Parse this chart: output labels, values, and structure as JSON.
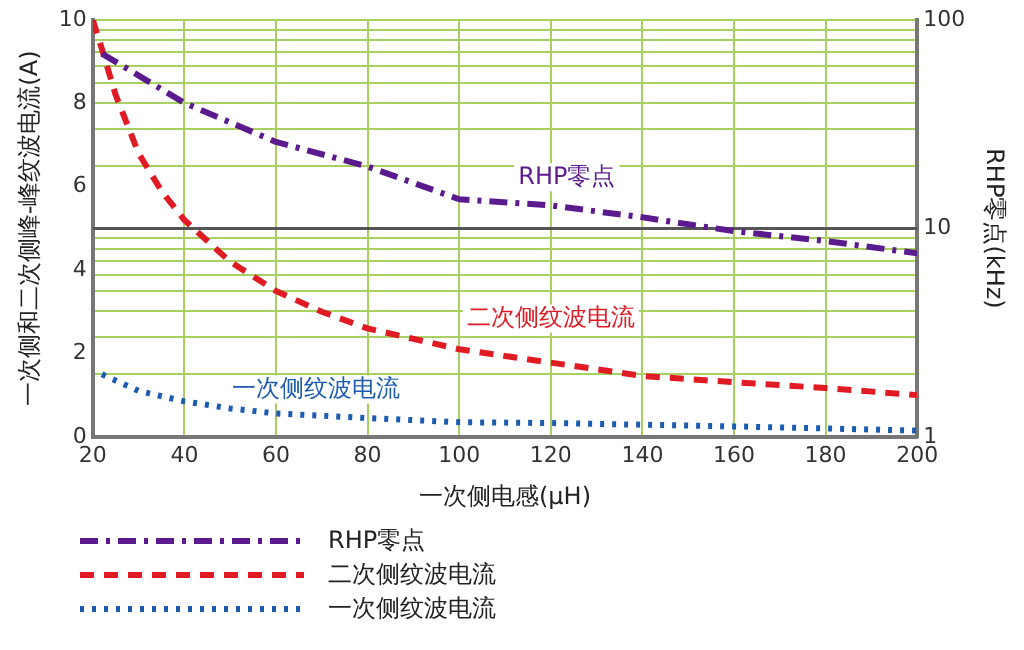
{
  "chart_data": {
    "type": "line",
    "xlabel": "一次侧电感(μH)",
    "ylabel": "一次侧和二次侧峰-峰纹波电流(A)",
    "y2label": "RHP零点(kHz)",
    "xlim": [
      20,
      200
    ],
    "xticks": [
      20,
      40,
      60,
      80,
      100,
      120,
      140,
      160,
      180,
      200
    ],
    "ylim": [
      0,
      10
    ],
    "yticks": [
      0,
      2,
      4,
      6,
      8,
      10
    ],
    "y2lim": [
      1,
      100
    ],
    "y2ticks": [
      1,
      {
        "value": 2,
        "label": null
      },
      {
        "value": 3,
        "label": null
      },
      {
        "value": 4,
        "label": null
      },
      {
        "value": 5,
        "label": null
      },
      {
        "value": 6,
        "label": null
      },
      {
        "value": 7,
        "label": null
      },
      {
        "value": 8,
        "label": null
      },
      {
        "value": 9,
        "label": null
      },
      10,
      {
        "value": 20,
        "label": null
      },
      {
        "value": 30,
        "label": null
      },
      {
        "value": 40,
        "label": null
      },
      {
        "value": 50,
        "label": null
      },
      {
        "value": 60,
        "label": null
      },
      {
        "value": 70,
        "label": null
      },
      {
        "value": 80,
        "label": null
      },
      {
        "value": 90,
        "label": null
      },
      100
    ],
    "log": "y2",
    "grid": true,
    "legend": "bottom left",
    "marker": "none",
    "ref_lines": [
      {
        "axis": "y2",
        "value": 10,
        "color": "#555555"
      }
    ],
    "series": [
      {
        "name": "RHP零点",
        "color": "#5b1a8e",
        "axis": "y2",
        "line_style": "dashdot",
        "x": [
          22,
          40,
          60,
          80,
          100,
          120,
          140,
          160,
          180,
          200
        ],
        "values": [
          69,
          40,
          26,
          19.8,
          13.8,
          12.9,
          11.3,
          9.7,
          8.7,
          7.6
        ]
      },
      {
        "name": "二次侧纹波电流",
        "color": "#e01b24",
        "line_style": "dashed",
        "x": [
          20,
          22,
          25,
          30,
          35,
          40,
          50,
          60,
          70,
          80,
          100,
          120,
          140,
          160,
          180,
          200
        ],
        "values": [
          10,
          9.3,
          8.2,
          6.8,
          5.9,
          5.2,
          4.2,
          3.5,
          3.0,
          2.6,
          2.1,
          1.78,
          1.46,
          1.31,
          1.17,
          1.0
        ]
      },
      {
        "name": "一次侧纹波电流",
        "color": "#1c5cb0",
        "line_style": "dotted",
        "x": [
          22,
          30,
          40,
          50,
          60,
          80,
          100,
          120,
          140,
          160,
          180,
          200
        ],
        "values": [
          1.5,
          1.1,
          0.85,
          0.68,
          0.56,
          0.45,
          0.35,
          0.33,
          0.29,
          0.25,
          0.2,
          0.15
        ]
      }
    ]
  }
}
